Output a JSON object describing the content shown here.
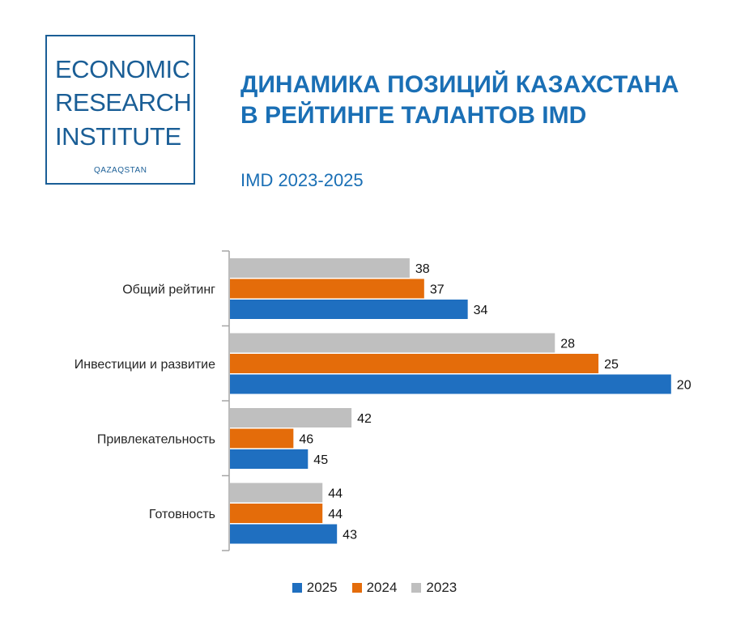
{
  "logo": {
    "line1": "ECONOMIC",
    "line2": "RESEARCH",
    "line3": "INSTITUTE",
    "sub": "QAZAQSTAN",
    "color": "#1a5e96"
  },
  "header": {
    "title_line1": "ДИНАМИКА ПОЗИЦИЙ КАЗАХСТАНА",
    "title_line2": "В РЕЙТИНГЕ ТАЛАНТОВ IMD",
    "subtitle": "IMD 2023-2025"
  },
  "chart_data": {
    "type": "bar",
    "orientation": "horizontal",
    "categories": [
      "Общий рейтинг",
      "Инвестиции и развитие",
      "Привлекательность",
      "Готовность"
    ],
    "series": [
      {
        "name": "2023",
        "color": "#bfbfbf",
        "values": [
          38,
          28,
          42,
          44
        ]
      },
      {
        "name": "2024",
        "color": "#e46c0a",
        "values": [
          37,
          25,
          46,
          44
        ]
      },
      {
        "name": "2025",
        "color": "#1f6fc0",
        "values": [
          34,
          20,
          45,
          43
        ]
      }
    ],
    "legend_order": [
      "2025",
      "2024",
      "2023"
    ],
    "legend_position": "bottom",
    "data_labels": true,
    "grid": false
  }
}
